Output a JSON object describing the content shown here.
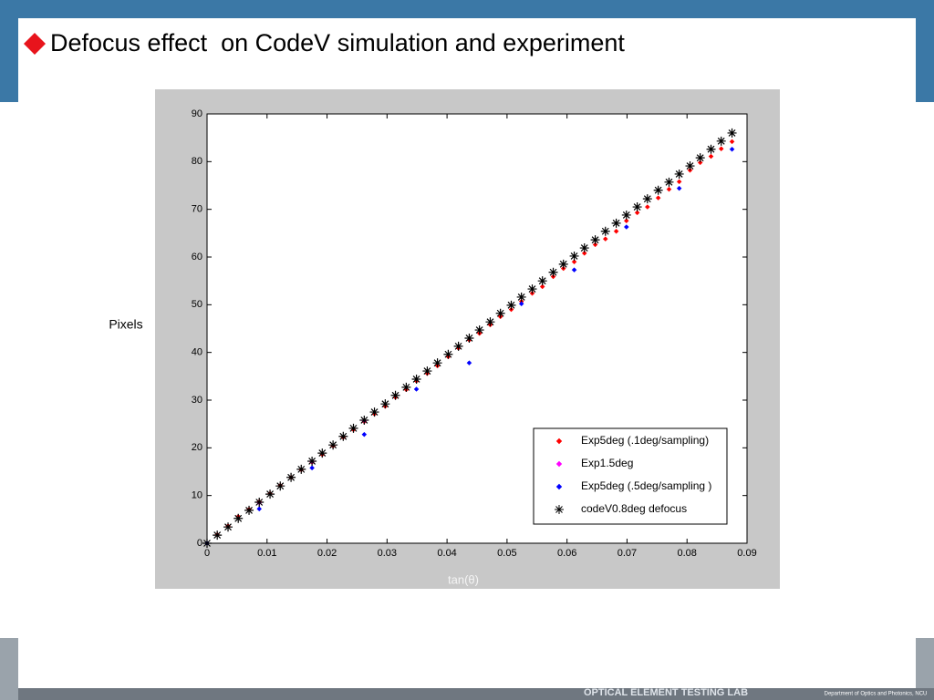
{
  "header": {
    "title": "Defocus effect  on CodeV simulation and experiment"
  },
  "footer": {
    "lab": "OPTICAL ELEMENT TESTING LAB",
    "department": "Department of Optics and Photonics, NCU"
  },
  "chart_data": {
    "type": "scatter",
    "ylabel": "Pixels",
    "xlabel": "tan(θ)",
    "xlim": [
      0,
      0.09
    ],
    "ylim": [
      0,
      90
    ],
    "xticks": [
      0,
      0.01,
      0.02,
      0.03,
      0.04,
      0.05,
      0.06,
      0.07,
      0.08,
      0.09
    ],
    "yticks": [
      0,
      10,
      20,
      30,
      40,
      50,
      60,
      70,
      80,
      90
    ],
    "legend": "lower right",
    "series": [
      {
        "name": "Exp5deg (.1deg/sampling)",
        "color": "#ff0000",
        "marker": "diamond",
        "x": [
          0,
          0.0017,
          0.0035,
          0.0052,
          0.007,
          0.0087,
          0.0105,
          0.0122,
          0.014,
          0.0157,
          0.0175,
          0.0192,
          0.021,
          0.0227,
          0.0244,
          0.0262,
          0.0279,
          0.0297,
          0.0314,
          0.0332,
          0.0349,
          0.0367,
          0.0384,
          0.0402,
          0.0419,
          0.0437,
          0.0454,
          0.0472,
          0.0489,
          0.0507,
          0.0524,
          0.0542,
          0.0559,
          0.0577,
          0.0594,
          0.0612,
          0.0629,
          0.0647,
          0.0664,
          0.0682,
          0.0699,
          0.0717,
          0.0734,
          0.0752,
          0.077,
          0.0787,
          0.0805,
          0.0822,
          0.084,
          0.0857,
          0.0875
        ],
        "values": [
          0,
          1.8,
          3.6,
          5.6,
          7.1,
          8.7,
          10.4,
          12.1,
          13.8,
          15.4,
          17,
          18.6,
          20.4,
          22.2,
          23.8,
          25.5,
          27.1,
          28.7,
          30.6,
          32.2,
          34,
          35.6,
          37.2,
          39.1,
          40.9,
          42.6,
          44,
          45.8,
          47.5,
          49,
          50.7,
          52.4,
          53.8,
          55.9,
          57.6,
          59,
          60.8,
          62.6,
          63.8,
          65.4,
          67.6,
          69.3,
          70.5,
          72.4,
          74.2,
          75.8,
          78.2,
          79.8,
          81.1,
          82.7,
          84.2
        ]
      },
      {
        "name": "Exp1.5deg",
        "color": "#ff00ff",
        "marker": "diamond",
        "x": [
          0.0087,
          0.0175,
          0.0262
        ],
        "values": [
          8.5,
          17.1,
          25.7
        ]
      },
      {
        "name": "Exp5deg (.5deg/sampling )",
        "color": "#0000ff",
        "marker": "diamond",
        "x": [
          0,
          0.0087,
          0.0175,
          0.0262,
          0.0349,
          0.0437,
          0.0524,
          0.0612,
          0.0699,
          0.0787,
          0.0875
        ],
        "values": [
          0,
          7.2,
          15.8,
          22.8,
          32.3,
          37.8,
          50.2,
          57.3,
          66.3,
          74.4,
          82.6
        ]
      },
      {
        "name": "codeV0.8deg defocus",
        "color": "#000000",
        "marker": "asterisk",
        "x": [
          0,
          0.0017,
          0.0035,
          0.0052,
          0.007,
          0.0087,
          0.0105,
          0.0122,
          0.014,
          0.0157,
          0.0175,
          0.0192,
          0.021,
          0.0227,
          0.0244,
          0.0262,
          0.0279,
          0.0297,
          0.0314,
          0.0332,
          0.0349,
          0.0367,
          0.0384,
          0.0402,
          0.0419,
          0.0437,
          0.0454,
          0.0472,
          0.0489,
          0.0507,
          0.0524,
          0.0542,
          0.0559,
          0.0577,
          0.0594,
          0.0612,
          0.0629,
          0.0647,
          0.0664,
          0.0682,
          0.0699,
          0.0717,
          0.0734,
          0.0752,
          0.077,
          0.0787,
          0.0805,
          0.0822,
          0.084,
          0.0857,
          0.0875
        ],
        "values": [
          0,
          1.7,
          3.4,
          5.2,
          6.9,
          8.6,
          10.3,
          12,
          13.8,
          15.5,
          17.2,
          18.9,
          20.6,
          22.4,
          24.1,
          25.8,
          27.5,
          29.2,
          31,
          32.7,
          34.4,
          36.1,
          37.8,
          39.6,
          41.3,
          43,
          44.7,
          46.4,
          48.2,
          49.9,
          51.6,
          53.3,
          55,
          56.8,
          58.5,
          60.2,
          61.9,
          63.6,
          65.4,
          67.1,
          68.8,
          70.5,
          72.2,
          74,
          75.7,
          77.4,
          79.1,
          80.8,
          82.6,
          84.3,
          86
        ]
      }
    ]
  }
}
